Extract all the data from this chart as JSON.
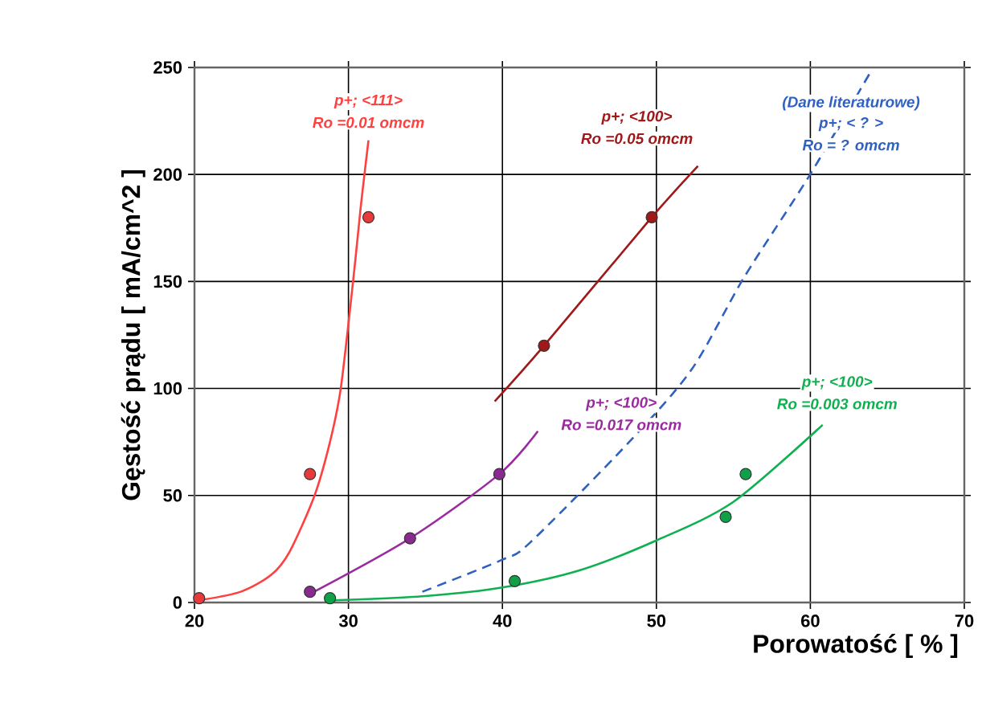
{
  "chart_data": {
    "type": "scatter",
    "xlabel": "Porowatość  [ % ]",
    "ylabel": "Gęstość prądu  [ mA/cm^2 ]",
    "xlim": [
      20,
      70
    ],
    "ylim": [
      0,
      250
    ],
    "xticks": [
      20,
      30,
      40,
      50,
      60,
      70
    ],
    "yticks": [
      0,
      50,
      100,
      150,
      200,
      250
    ],
    "grid": true,
    "annotations": [
      "(Dane literaturowe)",
      "Ro =0.01 omcm",
      "Ro =0.05 omcm",
      "Ro = ? omcm",
      "Ro =0.017 omcm",
      "Ro =0.003 omcm"
    ],
    "series": [
      {
        "type": "line",
        "name": "p+; <111>",
        "color": "#ff4040",
        "marker": "none",
        "line_style": "solid",
        "x": [
          20.3,
          23,
          25,
          26.2,
          27.8,
          28.8,
          29.5,
          30.3,
          30.8,
          31.3
        ],
        "values": [
          1,
          5,
          13,
          24,
          50,
          75,
          100,
          150,
          185,
          216
        ]
      },
      {
        "type": "line",
        "name": "p+; <100>",
        "color": "#a01818",
        "marker": "none",
        "line_style": "solid",
        "x": [
          39.5,
          42.7,
          49.7,
          52.7
        ],
        "values": [
          94,
          120,
          180,
          204
        ]
      },
      {
        "type": "line",
        "name": "p+; <  ?  >",
        "color": "#3060c0",
        "marker": "none",
        "line_style": "dashed",
        "x": [
          34.8,
          40,
          41.8,
          48.1,
          52.3,
          55.7,
          59.9,
          64
        ],
        "values": [
          5,
          20,
          28,
          74,
          109,
          152,
          199,
          249
        ]
      },
      {
        "type": "line",
        "name": "p+; <100>",
        "color": "#9a2aa0",
        "marker": "none",
        "line_style": "solid",
        "x": [
          27.5,
          34,
          39.8,
          42.3
        ],
        "values": [
          4,
          30,
          60,
          80
        ]
      },
      {
        "type": "line",
        "name": "p+; <100>",
        "color": "#10b050",
        "marker": "none",
        "line_style": "solid",
        "x": [
          29,
          35,
          40,
          45,
          50,
          55,
          60.8
        ],
        "values": [
          1,
          3,
          7,
          15,
          29,
          47,
          83
        ]
      },
      {
        "color": "#e83a3a",
        "marker": "circle",
        "x": [
          20.3,
          27.5,
          31.3
        ],
        "values": [
          2,
          60,
          180
        ]
      },
      {
        "color": "#a01818",
        "marker": "circle",
        "x": [
          42.7,
          49.7
        ],
        "values": [
          120,
          180
        ]
      },
      {
        "color": "#8a2a90",
        "marker": "circle",
        "x": [
          27.5,
          34,
          39.8
        ],
        "values": [
          5,
          30,
          60
        ]
      },
      {
        "color": "#10a048",
        "marker": "circle",
        "x": [
          28.8,
          40.8,
          54.5,
          55.8
        ],
        "values": [
          2,
          10,
          40,
          60
        ]
      }
    ]
  }
}
